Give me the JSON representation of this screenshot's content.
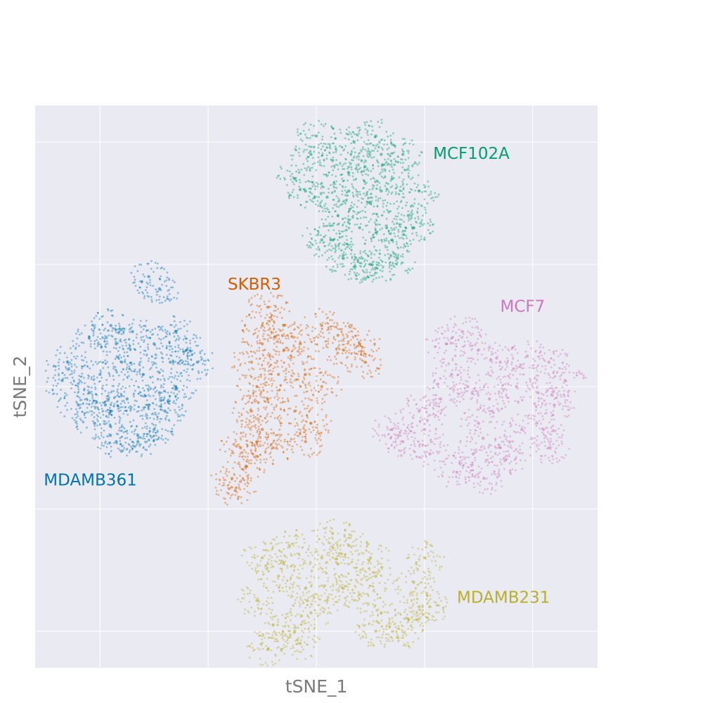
{
  "chart_data": {
    "type": "scatter",
    "title": "",
    "xlabel": "tSNE_1",
    "ylabel": "tSNE_2",
    "xlim": [
      -2.6,
      2.6
    ],
    "ylim": [
      -2.3,
      2.3
    ],
    "x_gridlines": [
      -2,
      -1,
      0,
      1,
      2
    ],
    "y_gridlines": [
      -2,
      -1,
      0,
      1,
      2
    ],
    "tick_labels_visible": false,
    "grid": true,
    "background": "#eaeaf2",
    "legend": "none (clusters labeled directly on plot)",
    "series": [
      {
        "name": "MCF102A",
        "color": "#029e73",
        "label_pos": [
          1.08,
          1.9
        ],
        "points": [
          [
            0.35,
            2.0
          ],
          [
            0.55,
            2.05
          ],
          [
            0.15,
            1.85
          ],
          [
            0.45,
            1.8
          ],
          [
            0.3,
            1.6
          ],
          [
            0.5,
            1.5
          ],
          [
            0.7,
            1.7
          ],
          [
            0.85,
            1.4
          ],
          [
            0.95,
            1.6
          ],
          [
            0.65,
            1.3
          ],
          [
            0.4,
            1.3
          ],
          [
            0.2,
            1.4
          ],
          [
            -0.1,
            1.6
          ],
          [
            -0.2,
            1.7
          ],
          [
            0.05,
            1.2
          ],
          [
            0.25,
            1.05
          ],
          [
            0.5,
            1.0
          ],
          [
            0.75,
            1.05
          ],
          [
            0.9,
            1.3
          ],
          [
            -0.05,
            1.9
          ],
          [
            0.0,
            2.05
          ],
          [
            0.6,
            1.9
          ],
          [
            0.8,
            1.9
          ],
          [
            0.15,
            1.2
          ],
          [
            0.35,
            0.98
          ],
          [
            0.55,
            0.97
          ],
          [
            0.7,
            1.2
          ],
          [
            0.3,
            1.75
          ],
          [
            0.1,
            1.55
          ],
          [
            0.6,
            1.6
          ]
        ]
      },
      {
        "name": "SKBR3",
        "color": "#d55e00",
        "label_pos": [
          -0.82,
          0.83
        ],
        "points": [
          [
            -0.45,
            0.65
          ],
          [
            -0.3,
            0.5
          ],
          [
            -0.5,
            0.35
          ],
          [
            -0.6,
            0.2
          ],
          [
            -0.55,
            0.0
          ],
          [
            -0.6,
            -0.2
          ],
          [
            -0.5,
            -0.35
          ],
          [
            -0.7,
            -0.5
          ],
          [
            -0.78,
            -0.75
          ],
          [
            -0.4,
            -0.5
          ],
          [
            -0.1,
            -0.45
          ],
          [
            -0.05,
            -0.3
          ],
          [
            -0.35,
            0.1
          ],
          [
            -0.3,
            0.3
          ],
          [
            -0.15,
            0.35
          ],
          [
            0.05,
            0.5
          ],
          [
            0.2,
            0.42
          ],
          [
            0.4,
            0.35
          ],
          [
            0.45,
            0.2
          ],
          [
            0.05,
            0.0
          ],
          [
            -0.2,
            -0.2
          ],
          [
            -0.65,
            -0.65
          ],
          [
            -0.5,
            0.5
          ],
          [
            -0.1,
            0.1
          ],
          [
            0.25,
            0.3
          ],
          [
            -0.45,
            -0.1
          ],
          [
            -0.55,
            -0.45
          ],
          [
            -0.75,
            -0.85
          ]
        ]
      },
      {
        "name": "MCF7",
        "color": "#cc78bc",
        "label_pos": [
          1.7,
          0.65
        ],
        "points": [
          [
            1.35,
            0.45
          ],
          [
            1.2,
            0.35
          ],
          [
            1.5,
            0.3
          ],
          [
            1.7,
            0.2
          ],
          [
            1.95,
            0.25
          ],
          [
            2.15,
            0.2
          ],
          [
            2.3,
            0.05
          ],
          [
            2.2,
            -0.15
          ],
          [
            2.1,
            -0.35
          ],
          [
            2.15,
            -0.5
          ],
          [
            1.9,
            -0.35
          ],
          [
            1.7,
            -0.5
          ],
          [
            1.45,
            -0.55
          ],
          [
            1.6,
            -0.1
          ],
          [
            1.4,
            0.0
          ],
          [
            1.15,
            -0.1
          ],
          [
            0.95,
            -0.2
          ],
          [
            0.7,
            -0.35
          ],
          [
            0.8,
            -0.45
          ],
          [
            1.05,
            -0.55
          ],
          [
            1.3,
            -0.7
          ],
          [
            1.55,
            -0.75
          ],
          [
            1.75,
            -0.6
          ],
          [
            1.25,
            0.1
          ],
          [
            1.85,
            0.0
          ],
          [
            2.05,
            -0.05
          ],
          [
            1.0,
            -0.35
          ],
          [
            1.5,
            -0.3
          ]
        ]
      },
      {
        "name": "MDAMB361",
        "color": "#0173b2",
        "label_pos": [
          -2.52,
          -0.77
        ],
        "points": [
          [
            -2.3,
            0.2
          ],
          [
            -2.1,
            0.4
          ],
          [
            -1.9,
            0.5
          ],
          [
            -1.7,
            0.45
          ],
          [
            -1.5,
            0.35
          ],
          [
            -1.35,
            0.2
          ],
          [
            -1.3,
            0.0
          ],
          [
            -1.4,
            -0.2
          ],
          [
            -1.5,
            -0.35
          ],
          [
            -1.65,
            -0.45
          ],
          [
            -1.85,
            -0.45
          ],
          [
            -2.05,
            -0.3
          ],
          [
            -2.2,
            -0.15
          ],
          [
            -2.35,
            0.05
          ],
          [
            -2.0,
            0.1
          ],
          [
            -1.8,
            0.2
          ],
          [
            -1.6,
            0.1
          ],
          [
            -1.75,
            -0.1
          ],
          [
            -1.95,
            -0.15
          ],
          [
            -1.55,
            -0.15
          ],
          [
            -2.1,
            -0.05
          ],
          [
            -1.85,
            0.35
          ],
          [
            -1.45,
            -0.05
          ],
          [
            -1.55,
            0.9
          ],
          [
            -1.45,
            0.8
          ],
          [
            -1.3,
            0.45
          ],
          [
            -1.1,
            0.2
          ],
          [
            -1.2,
            0.3
          ],
          [
            -1.65,
            -0.4
          ],
          [
            -1.9,
            -0.2
          ]
        ]
      },
      {
        "name": "MDAMB231",
        "color": "#b8b02b",
        "label_pos": [
          1.3,
          -1.73
        ],
        "points": [
          [
            -0.5,
            -1.4
          ],
          [
            -0.35,
            -1.55
          ],
          [
            -0.55,
            -1.75
          ],
          [
            -0.4,
            -1.95
          ],
          [
            -0.2,
            -2.0
          ],
          [
            -0.45,
            -2.15
          ],
          [
            -0.1,
            -1.65
          ],
          [
            0.05,
            -1.4
          ],
          [
            0.15,
            -1.2
          ],
          [
            0.3,
            -1.3
          ],
          [
            0.5,
            -1.4
          ],
          [
            0.55,
            -1.55
          ],
          [
            0.4,
            -1.7
          ],
          [
            0.25,
            -1.65
          ],
          [
            0.1,
            -1.75
          ],
          [
            -0.05,
            -1.85
          ],
          [
            0.6,
            -1.85
          ],
          [
            0.55,
            -2.0
          ],
          [
            0.75,
            -2.05
          ],
          [
            0.85,
            -1.9
          ],
          [
            0.9,
            -1.6
          ],
          [
            1.0,
            -1.4
          ],
          [
            0.95,
            -1.8
          ],
          [
            1.05,
            -1.8
          ],
          [
            -0.25,
            -1.3
          ],
          [
            -0.15,
            -2.1
          ],
          [
            -0.3,
            -1.45
          ],
          [
            0.2,
            -1.45
          ]
        ]
      }
    ]
  }
}
